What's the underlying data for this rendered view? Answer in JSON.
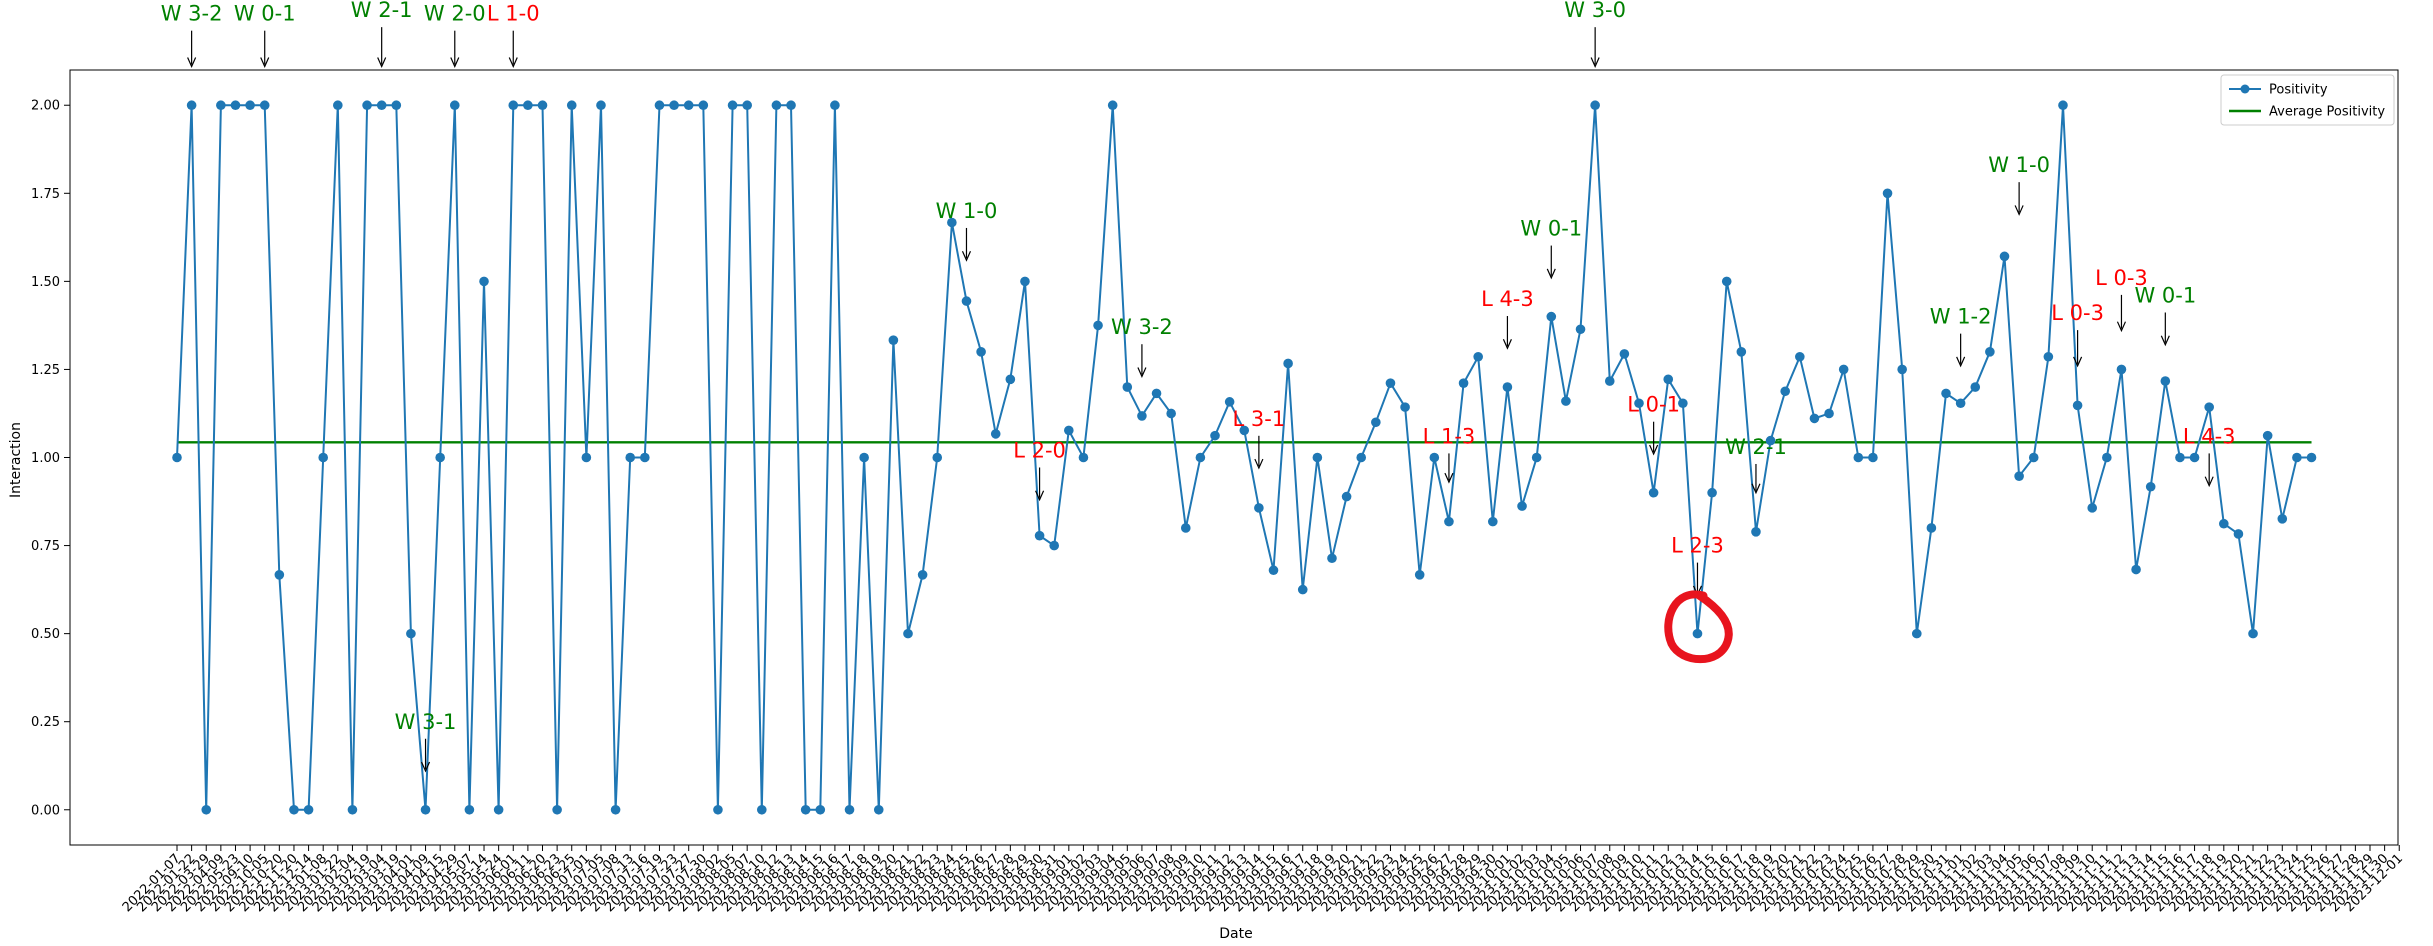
{
  "chart_data": {
    "type": "line",
    "xlabel": "Date",
    "ylabel": "Interaction",
    "ylim": [
      -0.1,
      2.1
    ],
    "yticks": [
      "0.00",
      "0.25",
      "0.50",
      "0.75",
      "1.00",
      "1.25",
      "1.50",
      "1.75",
      "2.00"
    ],
    "x_tick_labels": [
      "2022-01-07",
      "2022-01-22",
      "2022-03-29",
      "2022-04-09",
      "2022-05-23",
      "2022-09-10",
      "2022-10-05",
      "2022-10-20",
      "2022-11-20",
      "2022-12-14",
      "2023-01-08",
      "2023-01-22",
      "2023-02-04",
      "2023-02-19",
      "2023-03-04",
      "2023-03-19",
      "2023-04-01",
      "2023-04-09",
      "2023-04-15",
      "2023-04-29",
      "2023-05-07",
      "2023-05-14",
      "2023-05-24",
      "2023-06-01",
      "2023-06-11",
      "2023-06-20",
      "2023-06-23",
      "2023-06-25",
      "2023-07-01",
      "2023-07-05",
      "2023-07-08",
      "2023-07-13",
      "2023-07-16",
      "2023-07-19",
      "2023-07-23",
      "2023-07-27",
      "2023-07-30",
      "2023-08-02",
      "2023-08-05",
      "2023-08-07",
      "2023-08-10",
      "2023-08-12",
      "2023-08-13",
      "2023-08-14",
      "2023-08-15",
      "2023-08-16",
      "2023-08-17",
      "2023-08-18",
      "2023-08-19",
      "2023-08-20",
      "2023-08-21",
      "2023-08-22",
      "2023-08-23",
      "2023-08-24",
      "2023-08-25",
      "2023-08-26",
      "2023-08-27",
      "2023-08-28",
      "2023-08-29",
      "2023-08-30",
      "2023-08-31",
      "2023-09-01",
      "2023-09-02",
      "2023-09-03",
      "2023-09-04",
      "2023-09-05",
      "2023-09-06",
      "2023-09-07",
      "2023-09-08",
      "2023-09-09",
      "2023-09-10",
      "2023-09-11",
      "2023-09-12",
      "2023-09-13",
      "2023-09-14",
      "2023-09-15",
      "2023-09-16",
      "2023-09-17",
      "2023-09-18",
      "2023-09-19",
      "2023-09-20",
      "2023-09-21",
      "2023-09-22",
      "2023-09-23",
      "2023-09-24",
      "2023-09-25",
      "2023-09-26",
      "2023-09-27",
      "2023-09-28",
      "2023-09-29",
      "2023-09-30",
      "2023-10-01",
      "2023-10-02",
      "2023-10-03",
      "2023-10-04",
      "2023-10-05",
      "2023-10-06",
      "2023-10-07",
      "2023-10-08",
      "2023-10-09",
      "2023-10-10",
      "2023-10-11",
      "2023-10-12",
      "2023-10-13",
      "2023-10-14",
      "2023-10-15",
      "2023-10-16",
      "2023-10-17",
      "2023-10-18",
      "2023-10-19",
      "2023-10-20",
      "2023-10-21",
      "2023-10-22",
      "2023-10-23",
      "2023-10-24",
      "2023-10-25",
      "2023-10-26",
      "2023-10-27",
      "2023-10-28",
      "2023-10-29",
      "2023-10-30",
      "2023-10-31",
      "2023-11-01",
      "2023-11-02",
      "2023-11-03",
      "2023-11-04",
      "2023-11-05",
      "2023-11-06",
      "2023-11-07",
      "2023-11-08",
      "2023-11-09",
      "2023-11-10",
      "2023-11-11",
      "2023-11-12",
      "2023-11-13",
      "2023-11-14",
      "2023-11-15",
      "2023-11-16",
      "2023-11-17",
      "2023-11-18",
      "2023-11-19",
      "2023-11-20",
      "2023-11-21",
      "2023-11-22",
      "2023-11-23",
      "2023-11-24",
      "2023-11-25",
      "2023-11-26",
      "2023-11-27",
      "2023-11-28",
      "2023-11-29",
      "2023-11-30",
      "2023-12-01"
    ],
    "x_tick_count": 153,
    "series": [
      {
        "name": "Positivity",
        "color": "#1f77b4",
        "marker": "circle",
        "values": [
          1.0,
          2.0,
          0.0,
          2.0,
          2.0,
          2.0,
          2.0,
          0.667,
          0.0,
          0.0,
          1.0,
          2.0,
          0.0,
          2.0,
          2.0,
          2.0,
          0.5,
          0.0,
          1.0,
          2.0,
          0.0,
          1.5,
          0.0,
          2.0,
          2.0,
          2.0,
          0.0,
          2.0,
          1.0,
          2.0,
          0.0,
          1.0,
          1.0,
          2.0,
          2.0,
          2.0,
          2.0,
          0.0,
          2.0,
          2.0,
          0.0,
          2.0,
          2.0,
          0.0,
          0.0,
          2.0,
          0.0,
          1.0,
          0.0,
          1.333,
          0.5,
          0.667,
          1.0,
          1.667,
          1.444,
          1.3,
          1.067,
          1.222,
          1.5,
          0.778,
          0.75,
          1.077,
          1.0,
          1.375,
          2.0,
          1.2,
          1.118,
          1.182,
          1.125,
          0.8,
          1.0,
          1.062,
          1.158,
          1.077,
          0.857,
          0.68,
          1.267,
          0.625,
          1.0,
          0.714,
          0.889,
          1.0,
          1.1,
          1.211,
          1.143,
          0.667,
          1.0,
          0.818,
          1.211,
          1.286,
          0.818,
          1.2,
          0.862,
          1.0,
          1.4,
          1.16,
          1.364,
          2.0,
          1.217,
          1.294,
          1.154,
          0.9,
          1.222,
          1.154,
          0.5,
          0.9,
          1.5,
          1.3,
          0.789,
          1.048,
          1.188,
          1.286,
          1.111,
          1.125,
          1.25,
          1.0,
          1.0,
          1.75,
          1.25,
          0.5,
          0.8,
          1.182,
          1.154,
          1.2,
          1.3,
          1.571,
          0.947,
          1.0,
          1.286,
          2.0,
          1.148,
          0.857,
          1.0,
          1.25,
          0.682,
          0.917,
          1.217,
          1.0,
          1.0,
          1.143,
          0.812,
          0.783,
          0.5,
          1.062,
          0.826,
          1.0,
          1.0
        ]
      },
      {
        "name": "Average Positivity",
        "color": "#008000",
        "values": [
          1.043
        ]
      }
    ],
    "annotations": [
      {
        "text": "W 3-2",
        "index": 1,
        "value": 2.11,
        "color": "#008000",
        "text_value": 2.24
      },
      {
        "text": "W 0-1",
        "index": 6,
        "value": 2.11,
        "color": "#008000",
        "text_value": 2.24
      },
      {
        "text": "W 2-1",
        "index": 14,
        "value": 2.11,
        "color": "#008000",
        "text_value": 2.25
      },
      {
        "text": "W 2-0",
        "index": 19,
        "value": 2.11,
        "color": "#008000",
        "text_value": 2.24
      },
      {
        "text": "L 1-0",
        "index": 23,
        "value": 2.11,
        "color": "#ff0000",
        "text_value": 2.24
      },
      {
        "text": "W 3-1",
        "index": 17,
        "value": 0.11,
        "color": "#008000",
        "text_value": 0.23
      },
      {
        "text": "W 1-0",
        "index": 54,
        "value": 1.56,
        "color": "#008000",
        "text_value": 1.68
      },
      {
        "text": "L 2-0",
        "index": 59,
        "value": 0.88,
        "color": "#ff0000",
        "text_value": 1.0
      },
      {
        "text": "W 3-2",
        "index": 66,
        "value": 1.23,
        "color": "#008000",
        "text_value": 1.35
      },
      {
        "text": "L 3-1",
        "index": 74,
        "value": 0.97,
        "color": "#ff0000",
        "text_value": 1.09
      },
      {
        "text": "L 1-3",
        "index": 87,
        "value": 0.93,
        "color": "#ff0000",
        "text_value": 1.04
      },
      {
        "text": "L 4-3",
        "index": 91,
        "value": 1.31,
        "color": "#ff0000",
        "text_value": 1.43
      },
      {
        "text": "W 0-1",
        "index": 94,
        "value": 1.51,
        "color": "#008000",
        "text_value": 1.63
      },
      {
        "text": "W 3-0",
        "index": 97,
        "value": 2.11,
        "color": "#008000",
        "text_value": 2.25
      },
      {
        "text": "L 0-1",
        "index": 101,
        "value": 1.01,
        "color": "#ff0000",
        "text_value": 1.13
      },
      {
        "text": "L 2-3",
        "index": 104,
        "value": 0.61,
        "color": "#ff0000",
        "text_value": 0.73
      },
      {
        "text": "W 2-1",
        "index": 108,
        "value": 0.9,
        "color": "#008000",
        "text_value": 1.01
      },
      {
        "text": "W 1-2",
        "index": 122,
        "value": 1.26,
        "color": "#008000",
        "text_value": 1.38
      },
      {
        "text": "W 1-0",
        "index": 126,
        "value": 1.69,
        "color": "#008000",
        "text_value": 1.81
      },
      {
        "text": "L 0-3",
        "index": 130,
        "value": 1.26,
        "color": "#ff0000",
        "text_value": 1.39
      },
      {
        "text": "L 0-3",
        "index": 133,
        "value": 1.36,
        "color": "#ff0000",
        "text_value": 1.49
      },
      {
        "text": "W 0-1",
        "index": 136,
        "value": 1.32,
        "color": "#008000",
        "text_value": 1.44
      },
      {
        "text": "L 4-3",
        "index": 139,
        "value": 0.92,
        "color": "#ff0000",
        "text_value": 1.04
      }
    ],
    "highlight": {
      "index": 104,
      "value": 0.5,
      "color": "#e8141e",
      "shape": "hand-drawn circle"
    },
    "grid": false,
    "legend_position": "top-right"
  }
}
